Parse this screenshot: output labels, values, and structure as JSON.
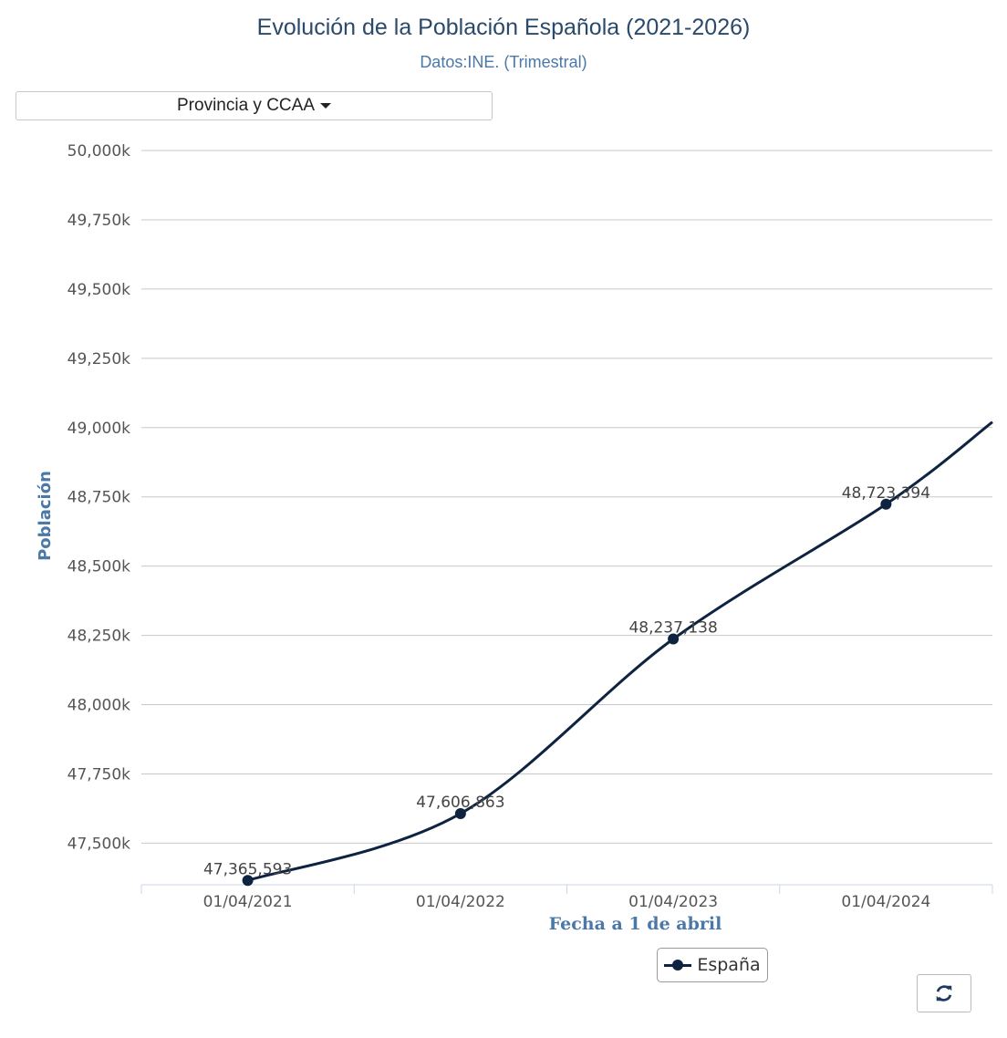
{
  "header": {
    "title": "Evolución de la Población Española (2021-2026)",
    "subtitle": "Datos:INE. (Trimestral)"
  },
  "filter": {
    "dropdown_label": "Provincia y CCAA"
  },
  "legend": {
    "label": "España"
  },
  "toolbar": {
    "refresh_icon": "refresh-icon"
  },
  "colors": {
    "series": "#0d2340",
    "title": "#2a4a6b",
    "axis_title": "#4a78a8",
    "grid": "#c8c8c8",
    "axis_line": "#ccd6eb"
  },
  "chart_data": {
    "type": "line",
    "title": "Evolución de la Población Española (2021-2026)",
    "subtitle": "Datos:INE. (Trimestral)",
    "xlabel": "Fecha a 1 de abril",
    "ylabel": "Población",
    "x": [
      "01/04/2021",
      "01/04/2022",
      "01/04/2023",
      "01/04/2024"
    ],
    "ylim": [
      47350000,
      50000000
    ],
    "yticks": [
      47500000,
      47750000,
      48000000,
      48250000,
      48500000,
      48750000,
      49000000,
      49250000,
      49500000,
      49750000,
      50000000
    ],
    "ytick_labels": [
      "47,500k",
      "47,750k",
      "48,000k",
      "48,250k",
      "48,500k",
      "48,750k",
      "49,000k",
      "49,250k",
      "49,500k",
      "49,750k",
      "50,000k"
    ],
    "series": [
      {
        "name": "España",
        "values": [
          47365593,
          47606863,
          48237138,
          48723394
        ],
        "data_labels": [
          "47,365,593",
          "47,606,863",
          "48,237,138",
          "48,723,394"
        ],
        "continues_beyond_last": 49020000
      }
    ],
    "grid": true,
    "legend_position": "bottom-center"
  }
}
